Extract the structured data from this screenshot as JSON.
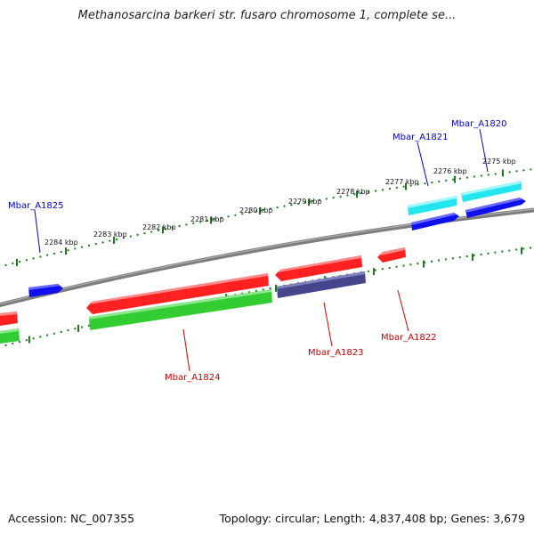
{
  "title": "Methanosarcina barkeri str. fusaro chromosome 1, complete se...",
  "footer": {
    "accession": "Accession: NC_007355",
    "summary": "Topology: circular; Length: 4,837,408 bp; Genes: 3,679"
  },
  "colors": {
    "backbone": "#7d7d7d",
    "tick": "#1f7a1f",
    "forward_label": "#0000cc",
    "reverse_label": "#cc0000",
    "red": "#ff2020",
    "green": "#33cc33",
    "blue": "#1010ee",
    "cyan": "#22e5ee",
    "navy": "#45458c"
  },
  "scale_labels": [
    "2275 kbp",
    "2276 kbp",
    "2277 kbp",
    "2278 kbp",
    "2279 kbp",
    "2280 kbp",
    "2281 kbp",
    "2282 kbp",
    "2283 kbp",
    "2284 kbp"
  ],
  "gene_labels": [
    {
      "text": "Mbar_A1820",
      "strand": "forward"
    },
    {
      "text": "Mbar_A1821",
      "strand": "forward"
    },
    {
      "text": "Mbar_A1825",
      "strand": "forward"
    },
    {
      "text": "Mbar_A1822",
      "strand": "reverse"
    },
    {
      "text": "Mbar_A1823",
      "strand": "reverse"
    },
    {
      "text": "Mbar_A1824",
      "strand": "reverse"
    }
  ]
}
